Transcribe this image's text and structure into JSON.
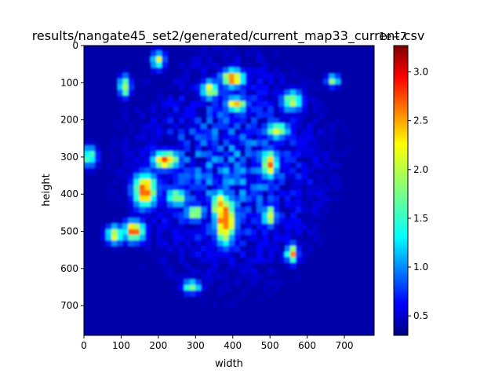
{
  "chart_data": {
    "type": "heatmap",
    "title": "results/nangate45_set2/generated/current_map33_current.csv",
    "xlabel": "width",
    "ylabel": "height",
    "xlim": [
      0,
      780
    ],
    "ylim": [
      780,
      0
    ],
    "x_ticks": [
      "0",
      "100",
      "200",
      "300",
      "400",
      "500",
      "600",
      "700"
    ],
    "x_tick_values": [
      0,
      100,
      200,
      300,
      400,
      500,
      600,
      700
    ],
    "y_ticks": [
      "0",
      "100",
      "200",
      "300",
      "400",
      "500",
      "600",
      "700"
    ],
    "y_tick_values": [
      0,
      100,
      200,
      300,
      400,
      500,
      600,
      700
    ],
    "colormap": "jet",
    "colorbar": {
      "min": 0.3,
      "max": 3.27,
      "ticks": [
        "0.5",
        "1.0",
        "1.5",
        "2.0",
        "2.5",
        "3.0"
      ],
      "tick_values": [
        0.5,
        1.0,
        1.5,
        2.0,
        2.5,
        3.0
      ],
      "offset_text": "1e−7"
    },
    "background_level": 0.35,
    "hotspots": [
      {
        "x": 380,
        "y": 470,
        "width": 30,
        "height": 80,
        "value": 3.2
      },
      {
        "x": 365,
        "y": 430,
        "width": 20,
        "height": 40,
        "value": 2.9
      },
      {
        "x": 165,
        "y": 390,
        "width": 35,
        "height": 55,
        "value": 3.0
      },
      {
        "x": 135,
        "y": 500,
        "width": 30,
        "height": 30,
        "value": 3.0
      },
      {
        "x": 220,
        "y": 310,
        "width": 40,
        "height": 25,
        "value": 3.0
      },
      {
        "x": 400,
        "y": 90,
        "width": 35,
        "height": 25,
        "value": 2.8
      },
      {
        "x": 410,
        "y": 160,
        "width": 30,
        "height": 20,
        "value": 2.6
      },
      {
        "x": 500,
        "y": 320,
        "width": 20,
        "height": 45,
        "value": 2.9
      },
      {
        "x": 500,
        "y": 460,
        "width": 15,
        "height": 30,
        "value": 2.5
      },
      {
        "x": 560,
        "y": 560,
        "width": 12,
        "height": 25,
        "value": 2.8
      },
      {
        "x": 340,
        "y": 120,
        "width": 25,
        "height": 25,
        "value": 2.4
      },
      {
        "x": 520,
        "y": 230,
        "width": 40,
        "height": 20,
        "value": 2.3
      },
      {
        "x": 110,
        "y": 110,
        "width": 12,
        "height": 30,
        "value": 2.4
      },
      {
        "x": 300,
        "y": 450,
        "width": 25,
        "height": 20,
        "value": 2.4
      },
      {
        "x": 290,
        "y": 650,
        "width": 25,
        "height": 15,
        "value": 2.0
      },
      {
        "x": 200,
        "y": 40,
        "width": 15,
        "height": 25,
        "value": 2.2
      },
      {
        "x": 85,
        "y": 510,
        "width": 25,
        "height": 25,
        "value": 2.4
      },
      {
        "x": 250,
        "y": 410,
        "width": 30,
        "height": 25,
        "value": 2.2
      },
      {
        "x": 560,
        "y": 150,
        "width": 30,
        "height": 30,
        "value": 2.2
      },
      {
        "x": 15,
        "y": 300,
        "width": 20,
        "height": 30,
        "value": 2.0
      },
      {
        "x": 670,
        "y": 95,
        "width": 15,
        "height": 12,
        "value": 2.2
      }
    ]
  }
}
